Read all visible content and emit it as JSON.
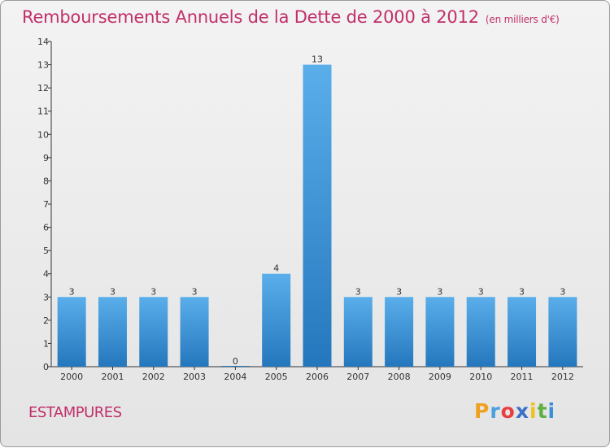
{
  "chart_data": {
    "type": "bar",
    "title": "Remboursements Annuels de la Dette de 2000 à 2012",
    "unit": "(en milliers d'€)",
    "categories": [
      "2000",
      "2001",
      "2002",
      "2003",
      "2004",
      "2005",
      "2006",
      "2007",
      "2008",
      "2009",
      "2010",
      "2011",
      "2012"
    ],
    "values": [
      3,
      3,
      3,
      3,
      0,
      4,
      13,
      3,
      3,
      3,
      3,
      3,
      3
    ],
    "ylim": [
      0,
      14
    ],
    "yticks": [
      0,
      1,
      2,
      3,
      4,
      5,
      6,
      7,
      8,
      9,
      10,
      11,
      12,
      13,
      14
    ],
    "grid": false,
    "bar_color": "#3a8fd6"
  },
  "commune": "ESTAMPURES",
  "logo": {
    "letters": [
      "P",
      "r",
      "o",
      "x",
      "i",
      "t",
      "i"
    ],
    "colors": [
      "#f0a020",
      "#4aa0e0",
      "#e84040",
      "#3a70c8",
      "#f0c020",
      "#60b040",
      "#3a90d8"
    ]
  }
}
